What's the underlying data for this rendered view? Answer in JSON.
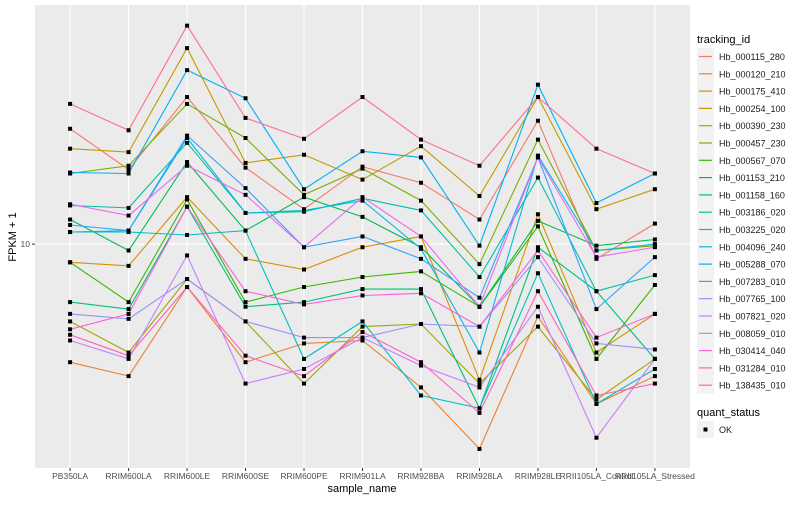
{
  "chart_data": {
    "type": "line",
    "xlabel": "sample_name",
    "ylabel": "FPKM + 1",
    "y_scale": "log10",
    "ylim": [
      2.39,
      46.1
    ],
    "y_ticks": [
      10
    ],
    "y_tick_labels": [
      "10"
    ],
    "grid": true,
    "legend_position": "right",
    "categories": [
      "PB350LA",
      "RRIM600LA",
      "RRIM600LE",
      "RRIM600SE",
      "RRIM600PE",
      "RRIM901LA",
      "RRIM928BA",
      "RRIM928LA",
      "RRIM928LE",
      "RRII105LA_Control",
      "RRII105LA_Stressed"
    ],
    "legend_title": "tracking_id",
    "series": [
      {
        "name": "Hb_000115_280",
        "color": "#F8766D",
        "values": [
          20.9,
          16.1,
          25.6,
          16.3,
          12.5,
          16.4,
          14.8,
          11.7,
          22.0,
          9.1,
          11.4
        ]
      },
      {
        "name": "Hb_000120_210",
        "color": "#EA8331",
        "values": [
          4.7,
          4.3,
          7.6,
          4.7,
          5.3,
          5.4,
          4.0,
          2.7,
          6.3,
          3.6,
          4.3
        ]
      },
      {
        "name": "Hb_000175_410",
        "color": "#D89000",
        "values": [
          8.9,
          8.7,
          13.5,
          9.1,
          8.5,
          9.8,
          10.5,
          4.2,
          12.1,
          5.0,
          6.4
        ]
      },
      {
        "name": "Hb_000254_100",
        "color": "#C09B00",
        "values": [
          18.4,
          18.0,
          35.0,
          16.8,
          17.7,
          15.1,
          18.7,
          13.6,
          25.6,
          12.5,
          14.2
        ]
      },
      {
        "name": "Hb_000390_230",
        "color": "#A3A500",
        "values": [
          6.1,
          5.0,
          8.0,
          6.1,
          4.1,
          5.9,
          6.0,
          4.1,
          5.9,
          3.7,
          4.8
        ]
      },
      {
        "name": "Hb_000457_230",
        "color": "#7CAE00",
        "values": [
          15.7,
          16.5,
          24.5,
          19.7,
          13.7,
          16.2,
          13.2,
          8.8,
          19.5,
          9.6,
          9.9
        ]
      },
      {
        "name": "Hb_000567_070",
        "color": "#39B600",
        "values": [
          8.9,
          6.9,
          13.3,
          6.9,
          7.6,
          8.1,
          8.4,
          6.7,
          11.2,
          4.8,
          7.7
        ]
      },
      {
        "name": "Hb_001153_210",
        "color": "#00BB4E",
        "values": [
          11.7,
          9.6,
          16.9,
          10.9,
          13.5,
          11.9,
          9.8,
          6.7,
          11.6,
          9.9,
          10.3
        ]
      },
      {
        "name": "Hb_001158_160",
        "color": "#00BF7D",
        "values": [
          6.9,
          6.6,
          12.7,
          6.7,
          6.9,
          7.5,
          7.5,
          3.5,
          9.8,
          7.4,
          4.8
        ]
      },
      {
        "name": "Hb_003186_020",
        "color": "#00C1A3",
        "values": [
          12.8,
          12.6,
          19.1,
          12.2,
          12.3,
          13.4,
          12.4,
          8.1,
          15.3,
          7.4,
          8.2
        ]
      },
      {
        "name": "Hb_003225_020",
        "color": "#00BFC4",
        "values": [
          10.8,
          10.8,
          10.6,
          10.9,
          4.8,
          6.1,
          3.8,
          3.5,
          8.3,
          3.6,
          4.5
        ]
      },
      {
        "name": "Hb_004096_240",
        "color": "#00BAE0",
        "values": [
          10.8,
          10.9,
          19.7,
          12.2,
          12.4,
          13.2,
          9.7,
          5.0,
          17.6,
          9.6,
          10.0
        ]
      },
      {
        "name": "Hb_005288_070",
        "color": "#00B0F6",
        "values": [
          15.8,
          15.7,
          30.4,
          25.4,
          14.2,
          18.1,
          17.4,
          9.9,
          27.7,
          13.0,
          15.7
        ]
      },
      {
        "name": "Hb_007283_010",
        "color": "#35A2FF",
        "values": [
          11.3,
          10.9,
          20.0,
          14.3,
          9.8,
          10.5,
          9.1,
          7.1,
          17.4,
          6.6,
          9.2
        ]
      },
      {
        "name": "Hb_007765_100",
        "color": "#9590FF",
        "values": [
          6.4,
          6.2,
          8.0,
          6.1,
          5.5,
          5.5,
          6.0,
          5.9,
          9.2,
          5.3,
          5.1
        ]
      },
      {
        "name": "Hb_007821_020",
        "color": "#C77CFF",
        "values": [
          5.4,
          4.8,
          9.3,
          4.1,
          4.5,
          5.5,
          4.6,
          4.0,
          6.7,
          2.9,
          4.8
        ]
      },
      {
        "name": "Hb_008059_010",
        "color": "#E76BF3",
        "values": [
          12.9,
          12.0,
          16.5,
          13.7,
          9.8,
          13.5,
          10.5,
          6.7,
          17.4,
          9.2,
          9.8
        ]
      },
      {
        "name": "Hb_030414_040",
        "color": "#FA62DB",
        "values": [
          5.8,
          6.4,
          12.7,
          7.4,
          6.8,
          7.2,
          7.3,
          5.9,
          9.6,
          5.5,
          6.4
        ]
      },
      {
        "name": "Hb_031284_010",
        "color": "#FF62BC",
        "values": [
          5.6,
          4.9,
          7.6,
          4.9,
          4.3,
          5.7,
          4.7,
          3.4,
          7.4,
          3.8,
          4.1
        ]
      },
      {
        "name": "Hb_138435_010",
        "color": "#FF6C91",
        "values": [
          24.5,
          20.7,
          40.4,
          22.4,
          19.6,
          25.6,
          19.5,
          16.5,
          25.6,
          18.4,
          15.7
        ]
      }
    ],
    "shape_legend": {
      "title": "quant_status",
      "items": [
        "OK"
      ]
    },
    "panel_background": "#EBEBEB",
    "grid_color": "#FFFFFF"
  }
}
